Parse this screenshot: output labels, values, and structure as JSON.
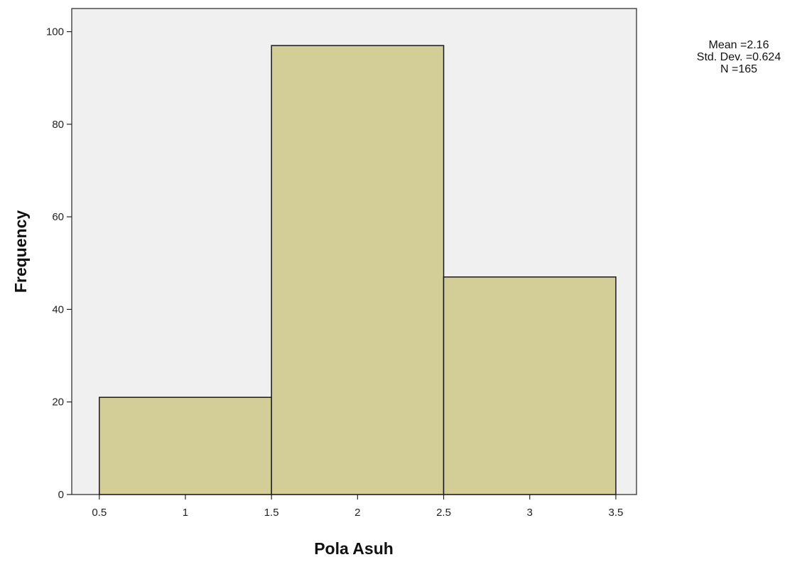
{
  "chart_data": {
    "type": "bar",
    "subtype": "histogram",
    "bins": [
      {
        "start": 0.5,
        "end": 1.5,
        "value": 21
      },
      {
        "start": 1.5,
        "end": 2.5,
        "value": 97
      },
      {
        "start": 2.5,
        "end": 3.5,
        "value": 47
      }
    ],
    "xlabel": "Pola Asuh",
    "ylabel": "Frequency",
    "xlim": [
      0.34,
      3.62
    ],
    "ylim": [
      0,
      105
    ],
    "x_ticks": [
      "0.5",
      "1",
      "1.5",
      "2",
      "2.5",
      "3",
      "3.5"
    ],
    "y_ticks": [
      "0",
      "20",
      "40",
      "60",
      "80",
      "100"
    ],
    "grid": false,
    "bar_color": "#d3cd98",
    "plot_background": "#f0f0f0"
  },
  "stats": {
    "mean": "Mean =2.16",
    "std_dev": "Std. Dev. =0.624",
    "n": "N =165"
  }
}
